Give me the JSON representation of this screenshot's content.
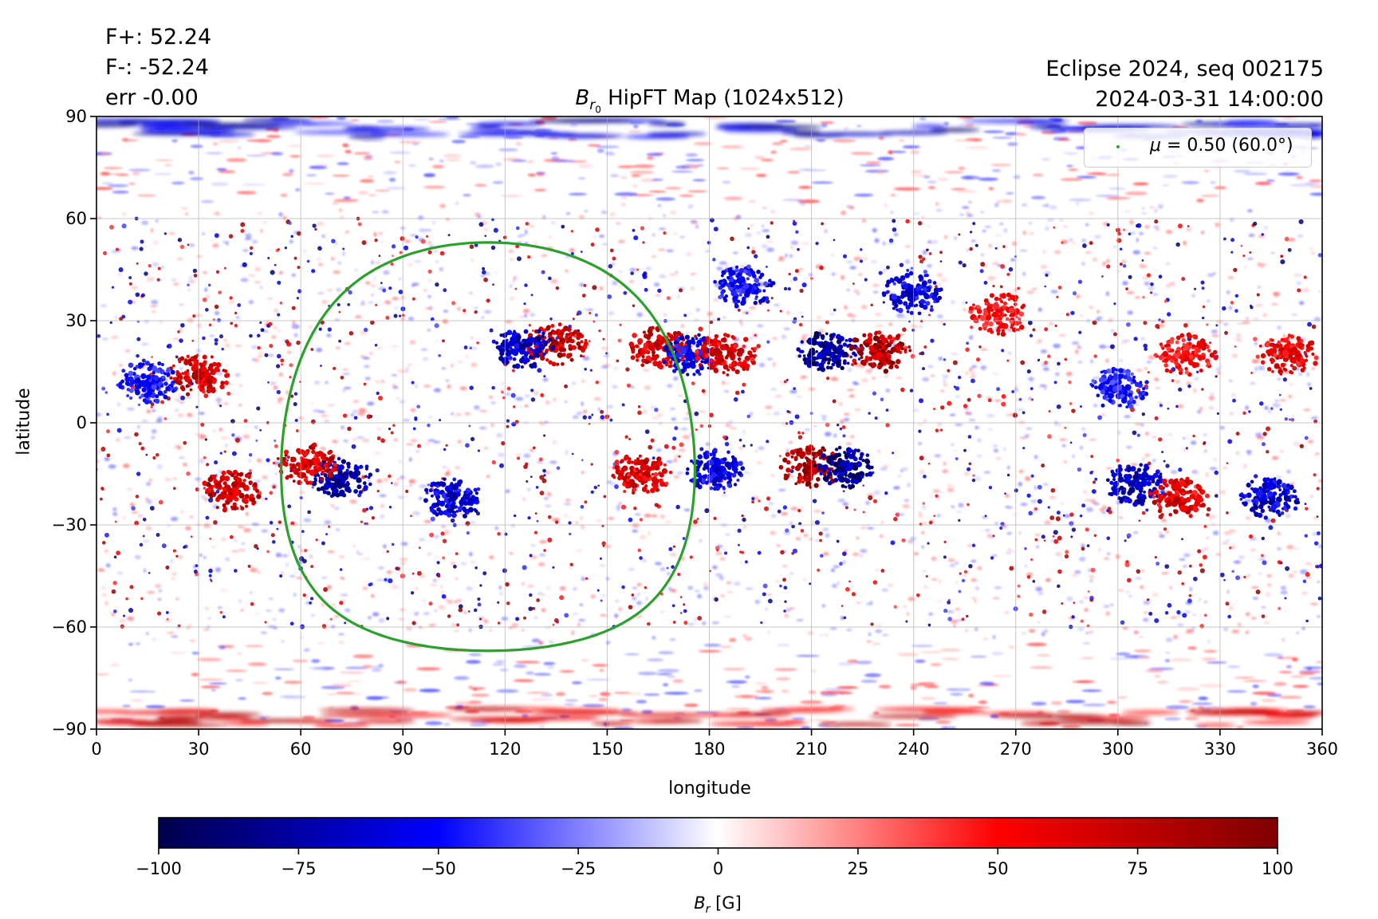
{
  "header": {
    "left_lines": [
      "F+: 52.24",
      "F-: -52.24",
      "err -0.00"
    ],
    "title_symbol": "B",
    "title_subscript": "r",
    "title_subsubscript": "0",
    "title_text": " HipFT Map (1024x512)",
    "right_lines": [
      "Eclipse 2024, seq 002175",
      "2024-03-31 14:00:00"
    ]
  },
  "chart_data": {
    "type": "heatmap",
    "title": "Br0 HipFT Map (1024x512)",
    "xlabel": "longitude",
    "ylabel": "latitude",
    "xlim": [
      0,
      360
    ],
    "ylim": [
      -90,
      90
    ],
    "xticks": [
      0,
      30,
      60,
      90,
      120,
      150,
      180,
      210,
      240,
      270,
      300,
      330,
      360
    ],
    "yticks": [
      -90,
      -60,
      -30,
      0,
      30,
      60,
      90
    ],
    "ytick_labels": [
      "−90",
      "−60",
      "−30",
      "0",
      "30",
      "60",
      "90"
    ],
    "grid": true,
    "colormap": "seismic",
    "colorbar": {
      "label_symbol": "B",
      "label_subscript": "r",
      "label_unit": " [G]",
      "range": [
        -100,
        100
      ],
      "ticks": [
        -100,
        -75,
        -50,
        -25,
        0,
        25,
        50,
        75,
        100
      ],
      "tick_labels": [
        "−100",
        "−75",
        "−50",
        "−25",
        "0",
        "25",
        "50",
        "75",
        "100"
      ],
      "orientation": "horizontal"
    },
    "contour": {
      "name": "mu = 0.50 (60.0 deg)",
      "color": "#2ca02c",
      "center_lon": 115,
      "center_lat": -7,
      "radius_deg": 60
    },
    "legend": {
      "label_prefix": "μ",
      "label_text": " = 0.50 (60.0°)",
      "placement": "top-right",
      "marker_color": "#2ca02c"
    },
    "active_regions": [
      {
        "lon": 210,
        "lat": -13,
        "polarity": "positive",
        "strength": 100
      },
      {
        "lon": 220,
        "lat": -13,
        "polarity": "negative",
        "strength": -100
      },
      {
        "lon": 215,
        "lat": 21,
        "polarity": "negative",
        "strength": -95
      },
      {
        "lon": 230,
        "lat": 21,
        "polarity": "positive",
        "strength": 95
      },
      {
        "lon": 72,
        "lat": -16,
        "polarity": "negative",
        "strength": -90
      },
      {
        "lon": 62,
        "lat": -12,
        "polarity": "positive",
        "strength": 80
      },
      {
        "lon": 40,
        "lat": -20,
        "polarity": "positive",
        "strength": 85
      },
      {
        "lon": 30,
        "lat": 14,
        "polarity": "positive",
        "strength": 80
      },
      {
        "lon": 15,
        "lat": 12,
        "polarity": "negative",
        "strength": -60
      },
      {
        "lon": 135,
        "lat": 23,
        "polarity": "positive",
        "strength": 85
      },
      {
        "lon": 125,
        "lat": 22,
        "polarity": "negative",
        "strength": -80
      },
      {
        "lon": 165,
        "lat": 22,
        "polarity": "positive",
        "strength": 80
      },
      {
        "lon": 175,
        "lat": 20,
        "polarity": "negative",
        "strength": -70
      },
      {
        "lon": 185,
        "lat": 20,
        "polarity": "positive",
        "strength": 75
      },
      {
        "lon": 105,
        "lat": -22,
        "polarity": "negative",
        "strength": -75
      },
      {
        "lon": 160,
        "lat": -15,
        "polarity": "positive",
        "strength": 75
      },
      {
        "lon": 182,
        "lat": -14,
        "polarity": "negative",
        "strength": -70
      },
      {
        "lon": 190,
        "lat": 40,
        "polarity": "negative",
        "strength": -60
      },
      {
        "lon": 240,
        "lat": 38,
        "polarity": "negative",
        "strength": -70
      },
      {
        "lon": 265,
        "lat": 32,
        "polarity": "positive",
        "strength": 60
      },
      {
        "lon": 305,
        "lat": -18,
        "polarity": "negative",
        "strength": -80
      },
      {
        "lon": 318,
        "lat": -22,
        "polarity": "positive",
        "strength": 75
      },
      {
        "lon": 345,
        "lat": -22,
        "polarity": "negative",
        "strength": -75
      },
      {
        "lon": 350,
        "lat": 20,
        "polarity": "positive",
        "strength": 70
      },
      {
        "lon": 320,
        "lat": 20,
        "polarity": "positive",
        "strength": 60
      },
      {
        "lon": 300,
        "lat": 10,
        "polarity": "negative",
        "strength": -55
      }
    ]
  }
}
